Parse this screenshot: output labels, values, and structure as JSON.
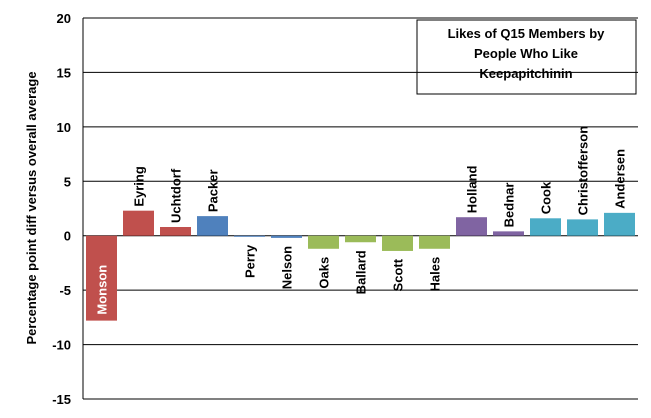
{
  "chart_data": {
    "type": "bar",
    "title": [
      "Likes of Q15 Members by",
      "People Who Like",
      "Keepapitchinin"
    ],
    "y_label": "Percentage point diff versus overall average",
    "categories": [
      "Monson",
      "Eyring",
      "Uchtdorf",
      "Packer",
      "Perry",
      "Nelson",
      "Oaks",
      "Ballard",
      "Scott",
      "Hales",
      "Holland",
      "Bednar",
      "Cook",
      "Christofferson",
      "Andersen"
    ],
    "values": [
      -7.8,
      2.3,
      0.8,
      1.8,
      -0.1,
      -0.2,
      -1.2,
      -0.6,
      -1.4,
      -1.2,
      1.7,
      0.4,
      1.6,
      1.5,
      2.1
    ],
    "colors": [
      "#c0504d",
      "#c0504d",
      "#c0504d",
      "#4f81bd",
      "#4f81bd",
      "#4f81bd",
      "#9bbb59",
      "#9bbb59",
      "#9bbb59",
      "#9bbb59",
      "#8064a2",
      "#8064a2",
      "#4bacc6",
      "#4bacc6",
      "#4bacc6"
    ],
    "ylim": [
      -15,
      20
    ],
    "yticks": [
      -15,
      -10,
      -5,
      0,
      5,
      10,
      15,
      20
    ],
    "grid": true
  }
}
